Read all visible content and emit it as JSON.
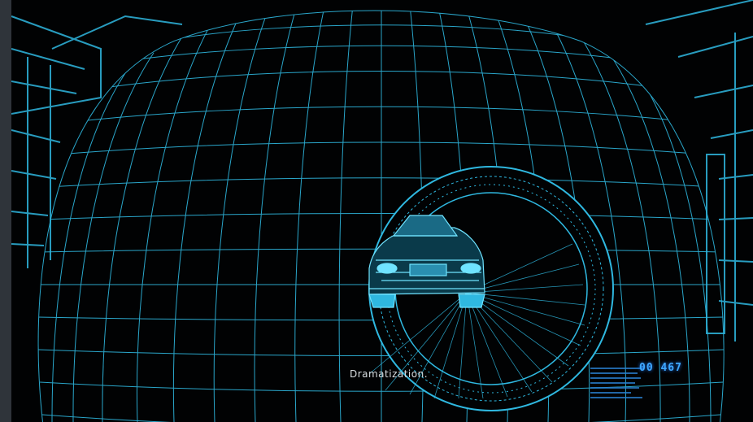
{
  "video": {
    "caption": "Dramatization.",
    "hud_counter": "00 467"
  },
  "colors": {
    "wireframe": "#2fb8e0",
    "wireframe_bright": "#6fe3ff",
    "background": "#010203",
    "frame": "#2f343a",
    "hud": "#3fa8ff"
  },
  "icons": {
    "car": "car-wireframe-icon"
  }
}
